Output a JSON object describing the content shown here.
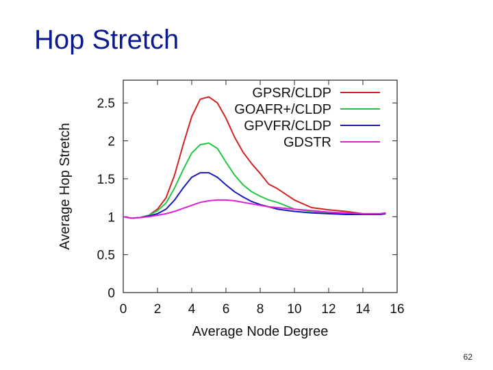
{
  "slide": {
    "title": "Hop Stretch",
    "page_number": "62"
  },
  "chart_data": {
    "type": "line",
    "title": "",
    "xlabel": "Average Node Degree",
    "ylabel": "Average Hop Stretch",
    "xlim": [
      0,
      16
    ],
    "ylim": [
      0,
      2.8
    ],
    "xticks": [
      0,
      2,
      4,
      6,
      8,
      10,
      12,
      14,
      16
    ],
    "yticks": [
      0,
      0.5,
      1,
      1.5,
      2,
      2.5
    ],
    "ytick_labels": [
      "0",
      "0.5",
      "1",
      "1.5",
      "2",
      "2.5"
    ],
    "legend_position": "top-right",
    "series": [
      {
        "name": "GPSR/CLDP",
        "color": "#d42020",
        "x": [
          0,
          0.5,
          1,
          1.5,
          2,
          2.5,
          3,
          3.5,
          4,
          4.5,
          5,
          5.5,
          6,
          6.5,
          7,
          7.5,
          8,
          8.5,
          9,
          10,
          11,
          12,
          13,
          14,
          15,
          15.3
        ],
        "y": [
          1.0,
          0.98,
          0.99,
          1.02,
          1.1,
          1.25,
          1.55,
          1.95,
          2.32,
          2.55,
          2.58,
          2.5,
          2.3,
          2.05,
          1.85,
          1.7,
          1.57,
          1.43,
          1.37,
          1.22,
          1.12,
          1.09,
          1.07,
          1.04,
          1.03,
          1.04
        ]
      },
      {
        "name": "GOAFR+/CLDP",
        "color": "#20c840",
        "x": [
          0,
          0.5,
          1,
          1.5,
          2,
          2.5,
          3,
          3.5,
          4,
          4.5,
          5,
          5.5,
          6,
          6.5,
          7,
          7.5,
          8,
          8.5,
          9,
          10,
          11,
          12,
          13,
          14,
          15,
          15.3
        ],
        "y": [
          1.0,
          0.98,
          0.99,
          1.02,
          1.08,
          1.18,
          1.38,
          1.62,
          1.84,
          1.95,
          1.97,
          1.9,
          1.72,
          1.55,
          1.42,
          1.33,
          1.27,
          1.22,
          1.19,
          1.1,
          1.07,
          1.05,
          1.04,
          1.03,
          1.03,
          1.04
        ]
      },
      {
        "name": "GPVFR/CLDP",
        "color": "#1818b8",
        "x": [
          0,
          0.5,
          1,
          1.5,
          2,
          2.5,
          3,
          3.5,
          4,
          4.5,
          5,
          5.5,
          6,
          6.5,
          7,
          7.5,
          8,
          8.5,
          9,
          10,
          11,
          12,
          13,
          14,
          15,
          15.3
        ],
        "y": [
          1.0,
          0.98,
          0.99,
          1.01,
          1.04,
          1.1,
          1.22,
          1.38,
          1.52,
          1.58,
          1.58,
          1.52,
          1.42,
          1.33,
          1.26,
          1.2,
          1.16,
          1.13,
          1.1,
          1.07,
          1.05,
          1.04,
          1.03,
          1.03,
          1.03,
          1.04
        ]
      },
      {
        "name": "GDSTR",
        "color": "#e020d8",
        "x": [
          0,
          0.5,
          1,
          1.5,
          2,
          2.5,
          3,
          3.5,
          4,
          4.5,
          5,
          5.5,
          6,
          6.5,
          7,
          7.5,
          8,
          8.5,
          9,
          10,
          11,
          12,
          13,
          14,
          15,
          15.3
        ],
        "y": [
          1.0,
          0.98,
          0.99,
          1.0,
          1.02,
          1.04,
          1.07,
          1.11,
          1.15,
          1.19,
          1.21,
          1.22,
          1.22,
          1.21,
          1.19,
          1.17,
          1.15,
          1.13,
          1.12,
          1.1,
          1.08,
          1.06,
          1.05,
          1.04,
          1.04,
          1.05
        ]
      }
    ]
  }
}
